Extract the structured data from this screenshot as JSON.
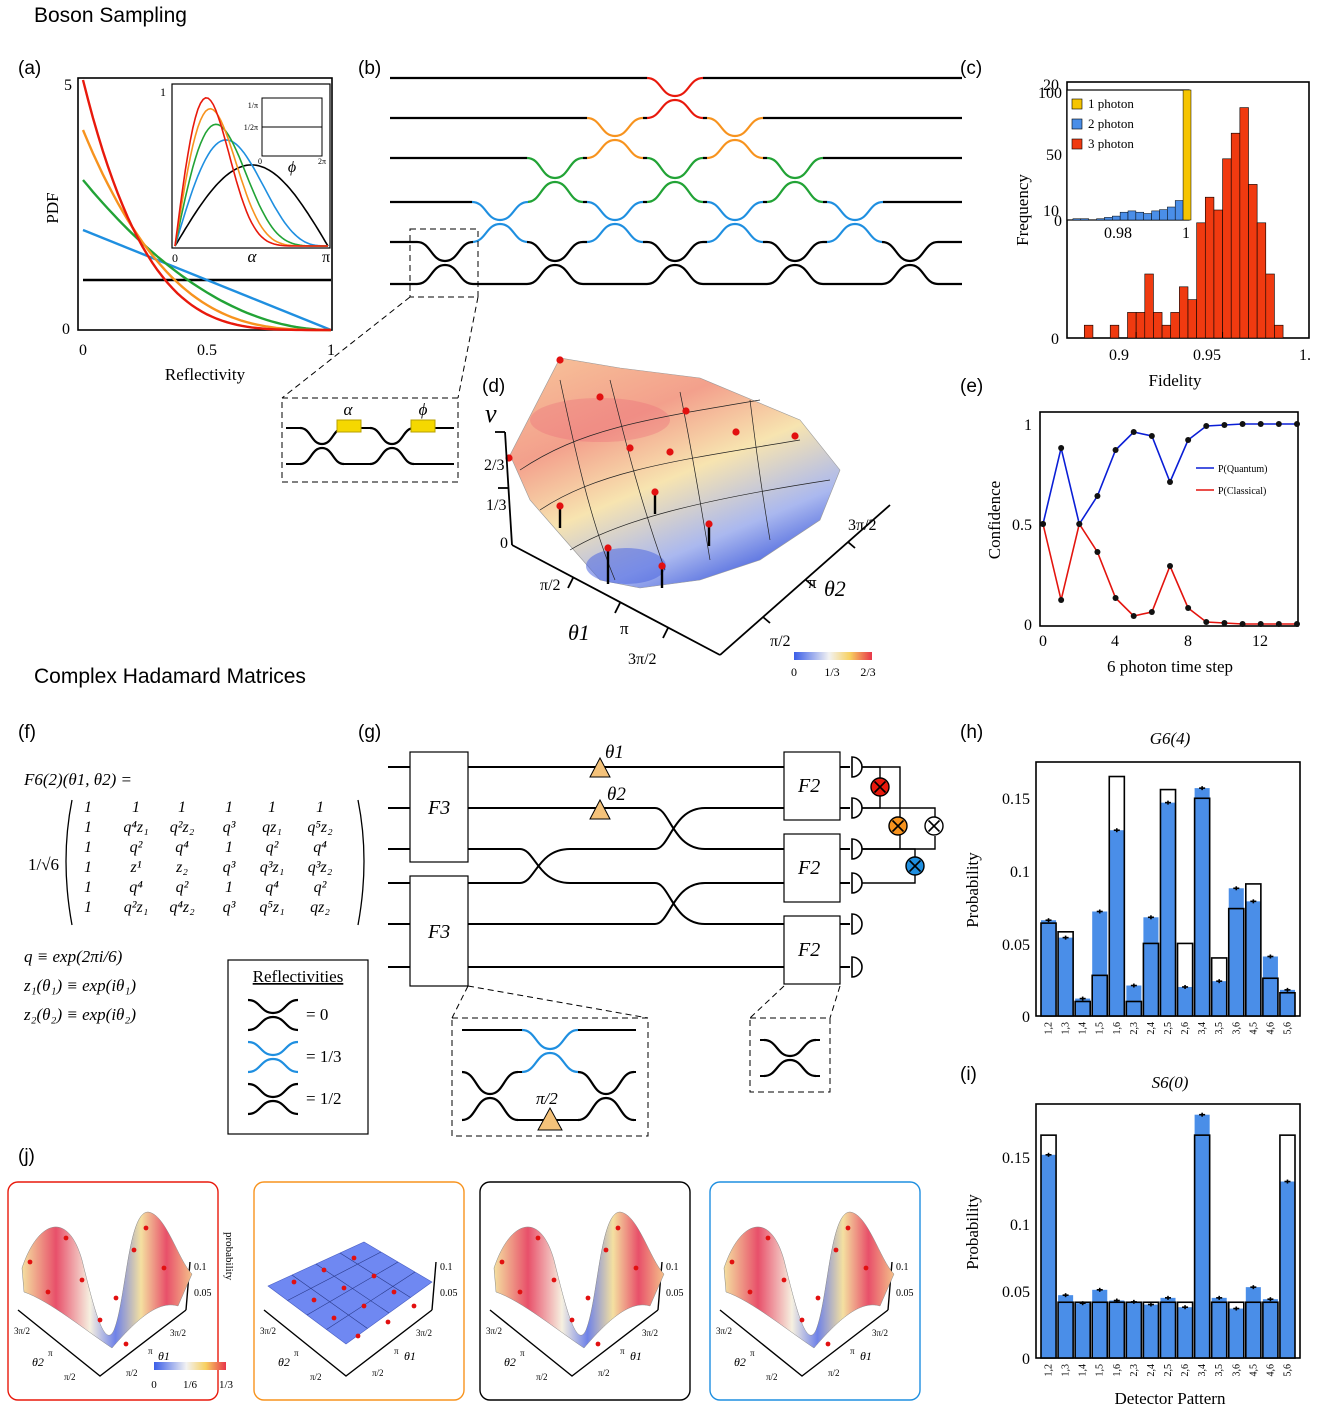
{
  "sections": {
    "boson": "Boson Sampling",
    "hadamard": "Complex Hadamard Matrices"
  },
  "panel_letters": {
    "a": "(a)",
    "b": "(b)",
    "c": "(c)",
    "d": "(d)",
    "e": "(e)",
    "f": "(f)",
    "g": "(g)",
    "h": "(h)",
    "i": "(i)",
    "j": "(j)"
  },
  "colors": {
    "red": "#e8190c",
    "orange": "#f7931e",
    "green": "#22a336",
    "blue": "#1f8fe0",
    "black": "#000000",
    "bar_blue": "#4a8ee8",
    "hist_red": "#f03a10",
    "hist_yellow": "#f5c400",
    "hist_blue": "#4a8ee8",
    "tri_fill": "#f4c27a"
  },
  "panel_a": {
    "xlabel": "Reflectivity",
    "ylabel": "PDF",
    "xticks": [
      "0",
      "0.5",
      "1"
    ],
    "yticks": [
      "0",
      "5"
    ],
    "inset": {
      "xlabel": "α",
      "xticks": [
        "0",
        "π"
      ],
      "yticks": [
        "0",
        "1"
      ],
      "sub": {
        "xlabel": "ϕ",
        "xticks": [
          "0",
          "2π"
        ],
        "yticks": [
          "0",
          "1/2π",
          "1/π"
        ]
      }
    }
  },
  "panel_b": {
    "zoom_labels": [
      "α",
      "ϕ"
    ]
  },
  "panel_d": {
    "zlabel": "ν",
    "zticks": [
      "0",
      "1/3",
      "2/3"
    ],
    "theta1_label": "θ1",
    "theta1_ticks": [
      "π/2",
      "π",
      "3π/2"
    ],
    "theta2_label": "θ2",
    "theta2_ticks": [
      "π/2",
      "π",
      "3π/2"
    ],
    "colorbar_ticks": [
      "0",
      "1/3",
      "2/3"
    ]
  },
  "panel_f": {
    "title": "F6(2)(θ1, θ2) =",
    "prefactor": "1/√6",
    "matrix": [
      [
        "1",
        "1",
        "1",
        "1",
        "1",
        "1"
      ],
      [
        "1",
        "q⁴z₁",
        "q²z₂",
        "q³",
        "qz₁",
        "q⁵z₂"
      ],
      [
        "1",
        "q²",
        "q⁴",
        "1",
        "q²",
        "q⁴"
      ],
      [
        "1",
        "z¹",
        "z₂",
        "q³",
        "q³z₁",
        "q³z₂"
      ],
      [
        "1",
        "q⁴",
        "q²",
        "1",
        "q⁴",
        "q²"
      ],
      [
        "1",
        "q²z₁",
        "q⁴z₂",
        "q³",
        "q⁵z₁",
        "qz₂"
      ]
    ],
    "defs": [
      "q ≡ exp(2πi/6)",
      "z₁(θ₁) ≡ exp(iθ₁)",
      "z₂(θ₂) ≡ exp(iθ₂)"
    ],
    "legend_title": "Reflectivities",
    "legend_values": [
      "= 0",
      "= 1/3",
      "= 1/2"
    ]
  },
  "panel_g": {
    "box_f3": "F3",
    "box_f2": "F2",
    "theta1": "θ1",
    "theta2": "θ2",
    "phase": "π/2"
  },
  "chart_data": [
    {
      "id": "c",
      "type": "histogram",
      "xlabel": "Fidelity",
      "ylabel": "Frequency",
      "xlim": [
        0.86,
        1.0
      ],
      "ylim": [
        0,
        20
      ],
      "xticks": [
        "0.9",
        "0.95",
        "1."
      ],
      "yticks": [
        "0",
        "10",
        "20"
      ],
      "bin_width": 0.005,
      "bins": [
        {
          "x": 0.87,
          "count": 1
        },
        {
          "x": 0.885,
          "count": 1
        },
        {
          "x": 0.895,
          "count": 2
        },
        {
          "x": 0.9,
          "count": 2
        },
        {
          "x": 0.905,
          "count": 5
        },
        {
          "x": 0.91,
          "count": 2
        },
        {
          "x": 0.915,
          "count": 1
        },
        {
          "x": 0.92,
          "count": 2
        },
        {
          "x": 0.925,
          "count": 4
        },
        {
          "x": 0.93,
          "count": 3
        },
        {
          "x": 0.935,
          "count": 9
        },
        {
          "x": 0.94,
          "count": 11
        },
        {
          "x": 0.945,
          "count": 10
        },
        {
          "x": 0.95,
          "count": 14
        },
        {
          "x": 0.955,
          "count": 16
        },
        {
          "x": 0.96,
          "count": 18
        },
        {
          "x": 0.965,
          "count": 12
        },
        {
          "x": 0.97,
          "count": 9
        },
        {
          "x": 0.975,
          "count": 5
        },
        {
          "x": 0.98,
          "count": 1
        }
      ],
      "inset": {
        "xticks": [
          "0.98",
          "1"
        ],
        "yticks": [
          "0",
          "50",
          "100"
        ],
        "xlim": [
          0.97,
          1.0
        ],
        "ylim": [
          0,
          100
        ],
        "legend": [
          "1 photon",
          "2 photon",
          "3 photon"
        ],
        "one_photon": {
          "x": 0.999,
          "count": 100
        },
        "two_photon": [
          {
            "x": 0.971,
            "count": 1
          },
          {
            "x": 0.973,
            "count": 1
          },
          {
            "x": 0.975,
            "count": 0
          },
          {
            "x": 0.977,
            "count": 1
          },
          {
            "x": 0.979,
            "count": 2
          },
          {
            "x": 0.981,
            "count": 3
          },
          {
            "x": 0.983,
            "count": 6
          },
          {
            "x": 0.985,
            "count": 7
          },
          {
            "x": 0.987,
            "count": 6
          },
          {
            "x": 0.989,
            "count": 5
          },
          {
            "x": 0.991,
            "count": 7
          },
          {
            "x": 0.993,
            "count": 8
          },
          {
            "x": 0.995,
            "count": 10
          },
          {
            "x": 0.997,
            "count": 15
          }
        ]
      }
    },
    {
      "id": "e",
      "type": "line",
      "xlabel": "6 photon time step",
      "ylabel": "Confidence",
      "xlim": [
        0,
        14
      ],
      "ylim": [
        0,
        1
      ],
      "xticks": [
        "0",
        "4",
        "8",
        "12"
      ],
      "yticks": [
        "0",
        "0.5",
        "1"
      ],
      "x": [
        0,
        1,
        2,
        3,
        4,
        5,
        6,
        7,
        8,
        9,
        10,
        11,
        12,
        13,
        14
      ],
      "series": [
        {
          "name": "P(Quantum)",
          "values": [
            0.5,
            0.88,
            0.5,
            0.64,
            0.87,
            0.96,
            0.94,
            0.71,
            0.92,
            0.99,
            0.995,
            1.0,
            1.0,
            1.0,
            1.0
          ]
        },
        {
          "name": "P(Classical)",
          "values": [
            0.5,
            0.12,
            0.5,
            0.36,
            0.13,
            0.04,
            0.06,
            0.29,
            0.08,
            0.01,
            0.005,
            0.0,
            0.0,
            0.0,
            0.0
          ]
        }
      ]
    },
    {
      "id": "h",
      "type": "bar",
      "title": "G6(4)",
      "ylabel": "Probability",
      "ylim": [
        0,
        0.175
      ],
      "yticks": [
        "0",
        "0.05",
        "0.1",
        "0.15"
      ],
      "categories": [
        "1,2",
        "1,3",
        "1,4",
        "1,5",
        "1,6",
        "2,3",
        "2,4",
        "2,5",
        "2,6",
        "3,4",
        "3,5",
        "3,6",
        "4,5",
        "4,6",
        "5,6"
      ],
      "measured": [
        0.066,
        0.054,
        0.012,
        0.072,
        0.128,
        0.021,
        0.068,
        0.147,
        0.02,
        0.157,
        0.024,
        0.088,
        0.079,
        0.041,
        0.018
      ],
      "theory": [
        0.064,
        0.058,
        0.01,
        0.028,
        0.165,
        0.01,
        0.05,
        0.156,
        0.05,
        0.15,
        0.04,
        0.074,
        0.091,
        0.026,
        0.016
      ]
    },
    {
      "id": "i",
      "type": "bar",
      "title": "S6(0)",
      "xlabel": "Detector Pattern",
      "ylabel": "Probability",
      "ylim": [
        0,
        0.19
      ],
      "yticks": [
        "0",
        "0.05",
        "0.1",
        "0.15"
      ],
      "categories": [
        "1,2",
        "1,3",
        "1,4",
        "1,5",
        "1,6",
        "2,3",
        "2,4",
        "2,5",
        "2,6",
        "3,4",
        "3,5",
        "3,6",
        "4,5",
        "4,6",
        "5,6"
      ],
      "measured": [
        0.152,
        0.047,
        0.041,
        0.051,
        0.043,
        0.042,
        0.04,
        0.045,
        0.038,
        0.182,
        0.045,
        0.037,
        0.053,
        0.044,
        0.132
      ],
      "theory": [
        0.1667,
        0.0417,
        0.0417,
        0.0417,
        0.0417,
        0.0417,
        0.0417,
        0.0417,
        0.0417,
        0.1667,
        0.0417,
        0.0417,
        0.0417,
        0.0417,
        0.1667
      ]
    }
  ],
  "panel_j": {
    "zlabel": "probability",
    "zticks": [
      "0.05",
      "0.1"
    ],
    "theta_ticks": [
      "π/2",
      "π",
      "3π/2"
    ],
    "theta1": "θ1",
    "theta2": "θ2",
    "colorbar_ticks": [
      "0",
      "1/6",
      "1/3"
    ],
    "frame_colors": [
      "#e8190c",
      "#f7931e",
      "#000000",
      "#1f8fe0"
    ]
  }
}
